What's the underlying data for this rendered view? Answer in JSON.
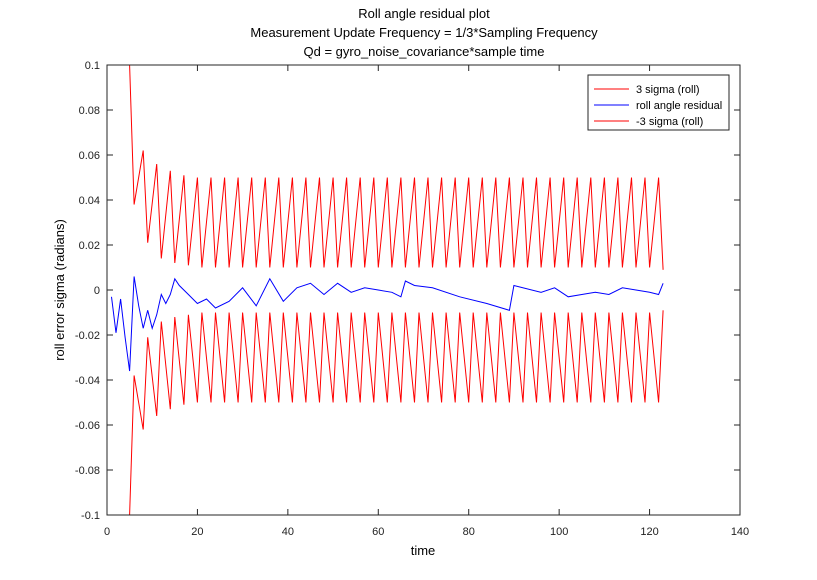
{
  "chart_data": {
    "type": "line",
    "title_lines": [
      "Roll angle residual plot",
      "Measurement Update Frequency = 1/3*Sampling Frequency",
      "Qd = gyro_noise_covariance*sample time"
    ],
    "xlabel": "time",
    "ylabel": "roll error sigma (radians)",
    "xlim": [
      0,
      140
    ],
    "ylim": [
      -0.1,
      0.1
    ],
    "xticks": [
      0,
      20,
      40,
      60,
      80,
      100,
      120,
      140
    ],
    "xtick_labels": [
      "0",
      "20",
      "40",
      "60",
      "80",
      "100",
      "120",
      "140"
    ],
    "yticks": [
      -0.1,
      -0.08,
      -0.06,
      -0.04,
      -0.02,
      0,
      0.02,
      0.04,
      0.06,
      0.08,
      0.1
    ],
    "ytick_labels": [
      "-0.1",
      "-0.08",
      "-0.06",
      "-0.04",
      "-0.02",
      "0",
      "0.02",
      "0.04",
      "0.06",
      "0.08",
      "0.1"
    ],
    "grid": false,
    "legend_position": "top-right",
    "series": [
      {
        "name": "3 sigma (roll)",
        "color": "#ff0000",
        "x": [
          5,
          6,
          8,
          9,
          11,
          12,
          14,
          15,
          17,
          18,
          20,
          21,
          23,
          24,
          26,
          27,
          29,
          30,
          32,
          33,
          35,
          36,
          38,
          39,
          41,
          42,
          44,
          45,
          47,
          48,
          50,
          51,
          53,
          54,
          56,
          57,
          59,
          60,
          62,
          63,
          65,
          66,
          68,
          69,
          71,
          72,
          74,
          75,
          77,
          78,
          80,
          81,
          83,
          84,
          86,
          87,
          89,
          90,
          92,
          93,
          95,
          96,
          98,
          99,
          101,
          102,
          104,
          105,
          107,
          108,
          110,
          111,
          113,
          114,
          116,
          117,
          119,
          120,
          122,
          123
        ],
        "y": [
          0.1,
          0.038,
          0.062,
          0.021,
          0.056,
          0.014,
          0.053,
          0.012,
          0.051,
          0.011,
          0.05,
          0.01,
          0.05,
          0.01,
          0.05,
          0.01,
          0.05,
          0.01,
          0.05,
          0.01,
          0.05,
          0.01,
          0.05,
          0.01,
          0.05,
          0.01,
          0.05,
          0.01,
          0.05,
          0.01,
          0.05,
          0.01,
          0.05,
          0.01,
          0.05,
          0.01,
          0.05,
          0.01,
          0.05,
          0.01,
          0.05,
          0.01,
          0.05,
          0.01,
          0.05,
          0.01,
          0.05,
          0.01,
          0.05,
          0.01,
          0.05,
          0.01,
          0.05,
          0.01,
          0.05,
          0.01,
          0.05,
          0.01,
          0.05,
          0.01,
          0.05,
          0.01,
          0.05,
          0.01,
          0.05,
          0.01,
          0.05,
          0.01,
          0.05,
          0.01,
          0.05,
          0.01,
          0.05,
          0.01,
          0.05,
          0.01,
          0.05,
          0.01,
          0.05,
          0.009
        ]
      },
      {
        "name": "roll angle residual",
        "color": "#0000ff",
        "x": [
          1,
          2,
          3,
          4,
          5,
          6,
          7,
          8,
          9,
          10,
          11,
          12,
          13,
          14,
          15,
          16,
          18,
          20,
          22,
          24,
          27,
          30,
          33,
          36,
          39,
          42,
          45,
          48,
          51,
          54,
          57,
          60,
          63,
          65,
          66,
          68,
          72,
          78,
          84,
          89,
          90,
          96,
          99,
          102,
          105,
          108,
          111,
          114,
          117,
          120,
          122,
          123
        ],
        "y": [
          -0.003,
          -0.019,
          -0.004,
          -0.021,
          -0.036,
          0.006,
          -0.007,
          -0.017,
          -0.009,
          -0.017,
          -0.011,
          -0.002,
          -0.006,
          -0.002,
          0.005,
          0.002,
          -0.002,
          -0.006,
          -0.004,
          -0.008,
          -0.005,
          0.001,
          -0.007,
          0.005,
          -0.005,
          0.001,
          0.003,
          -0.002,
          0.003,
          -0.001,
          0.001,
          0.0,
          -0.001,
          -0.003,
          0.004,
          0.002,
          0.001,
          -0.003,
          -0.006,
          -0.009,
          0.002,
          -0.001,
          0.001,
          -0.003,
          -0.002,
          -0.001,
          -0.002,
          0.001,
          0.0,
          -0.001,
          -0.002,
          0.003
        ]
      },
      {
        "name": "-3 sigma (roll)",
        "color": "#ff0000",
        "x": [
          5,
          6,
          8,
          9,
          11,
          12,
          14,
          15,
          17,
          18,
          20,
          21,
          23,
          24,
          26,
          27,
          29,
          30,
          32,
          33,
          35,
          36,
          38,
          39,
          41,
          42,
          44,
          45,
          47,
          48,
          50,
          51,
          53,
          54,
          56,
          57,
          59,
          60,
          62,
          63,
          65,
          66,
          68,
          69,
          71,
          72,
          74,
          75,
          77,
          78,
          80,
          81,
          83,
          84,
          86,
          87,
          89,
          90,
          92,
          93,
          95,
          96,
          98,
          99,
          101,
          102,
          104,
          105,
          107,
          108,
          110,
          111,
          113,
          114,
          116,
          117,
          119,
          120,
          122,
          123
        ],
        "y": [
          -0.1,
          -0.038,
          -0.062,
          -0.021,
          -0.056,
          -0.014,
          -0.053,
          -0.012,
          -0.051,
          -0.011,
          -0.05,
          -0.01,
          -0.05,
          -0.01,
          -0.05,
          -0.01,
          -0.05,
          -0.01,
          -0.05,
          -0.01,
          -0.05,
          -0.01,
          -0.05,
          -0.01,
          -0.05,
          -0.01,
          -0.05,
          -0.01,
          -0.05,
          -0.01,
          -0.05,
          -0.01,
          -0.05,
          -0.01,
          -0.05,
          -0.01,
          -0.05,
          -0.01,
          -0.05,
          -0.01,
          -0.05,
          -0.01,
          -0.05,
          -0.01,
          -0.05,
          -0.01,
          -0.05,
          -0.01,
          -0.05,
          -0.01,
          -0.05,
          -0.01,
          -0.05,
          -0.01,
          -0.05,
          -0.01,
          -0.05,
          -0.01,
          -0.05,
          -0.01,
          -0.05,
          -0.01,
          -0.05,
          -0.01,
          -0.05,
          -0.01,
          -0.05,
          -0.01,
          -0.05,
          -0.01,
          -0.05,
          -0.01,
          -0.05,
          -0.01,
          -0.05,
          -0.01,
          -0.05,
          -0.01,
          -0.05,
          -0.009
        ]
      }
    ]
  }
}
